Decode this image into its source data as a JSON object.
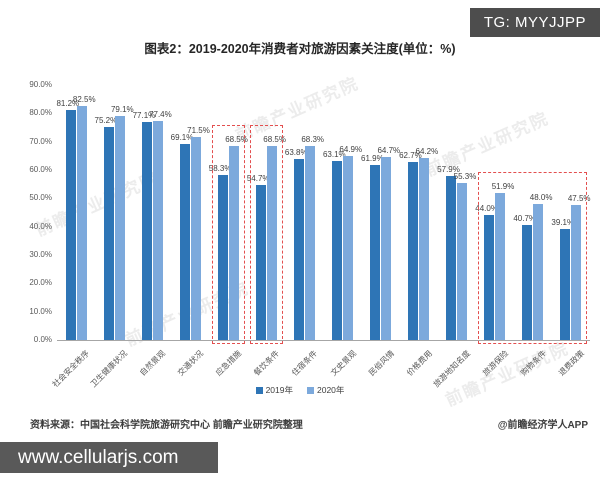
{
  "banner_top": {
    "text": "TG: MYYJJPP"
  },
  "title": "图表2：2019-2020年消费者对旅游因素关注度(单位：%)",
  "watermark_text": "前瞻产业研究院",
  "chart_data": {
    "type": "bar",
    "title": "图表2：2019-2020年消费者对旅游因素关注度(单位：%)",
    "categories": [
      "社会安全秩序",
      "卫生健康状况",
      "自然景观",
      "交通状况",
      "应急措施",
      "餐饮条件",
      "住宿条件",
      "文史景观",
      "民俗风情",
      "价格费用",
      "旅游地知名度",
      "旅游保险",
      "购物条件",
      "退费政策"
    ],
    "series": [
      {
        "name": "2019年",
        "color": "#2e75b6",
        "values": [
          81.2,
          75.2,
          77.1,
          69.1,
          58.3,
          54.7,
          63.8,
          63.1,
          61.9,
          62.7,
          57.9,
          44.0,
          40.7,
          39.1
        ]
      },
      {
        "name": "2020年",
        "color": "#7ca9dc",
        "values": [
          82.5,
          79.1,
          77.4,
          71.5,
          68.5,
          68.5,
          68.3,
          64.9,
          64.7,
          64.2,
          55.3,
          51.9,
          48.0,
          47.5
        ]
      }
    ],
    "xlabel": "",
    "ylabel": "",
    "ylim": [
      0,
      90
    ],
    "y_ticks": [
      "0.0%",
      "10.0%",
      "20.0%",
      "30.0%",
      "40.0%",
      "50.0%",
      "60.0%",
      "70.0%",
      "80.0%",
      "90.0%"
    ],
    "grid": false,
    "legend_position": "bottom",
    "highlight_color": "#e34f4f",
    "highlight_boxes": [
      {
        "from": 4,
        "to": 4
      },
      {
        "from": 5,
        "to": 5
      },
      {
        "from": 11,
        "to": 13
      }
    ]
  },
  "source": {
    "left": "资料来源：中国社会科学院旅游研究中心 前瞻产业研究院整理",
    "right": "@前瞻经济学人APP"
  },
  "banner_bottom": {
    "text": "www.cellularjs.com"
  }
}
